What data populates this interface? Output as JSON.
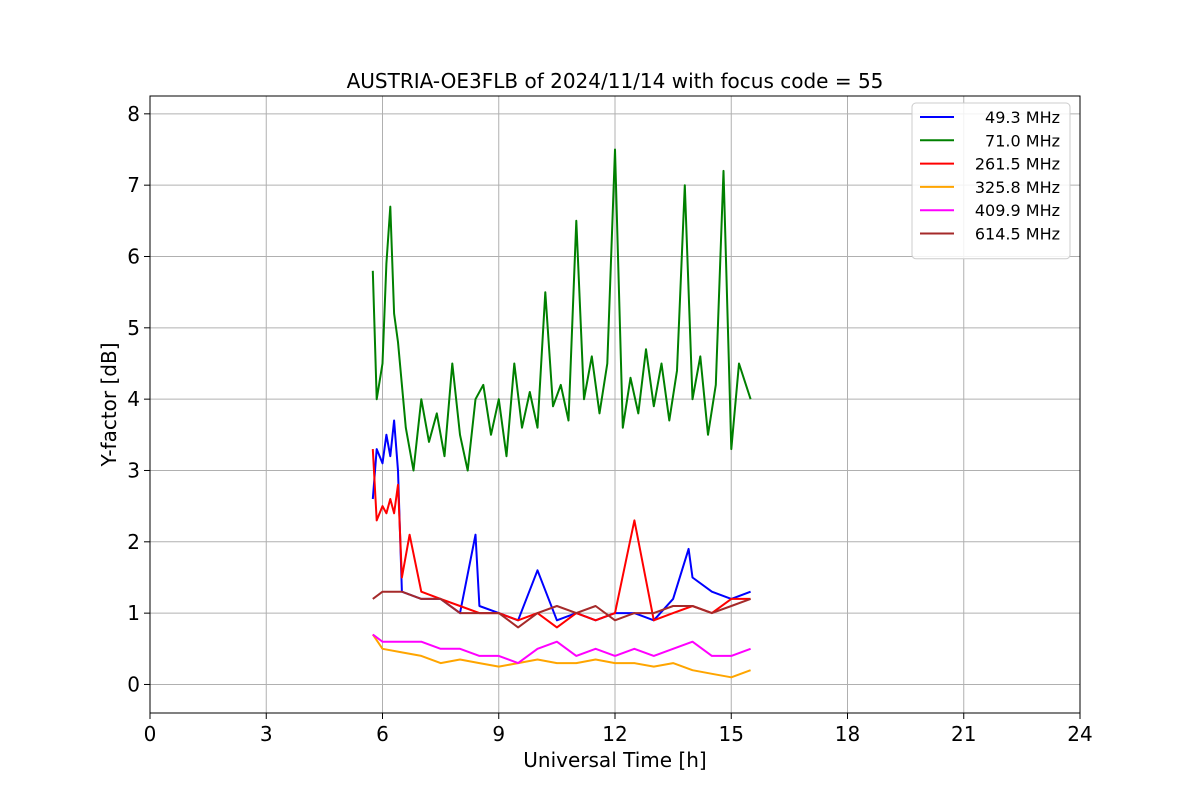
{
  "chart_data": {
    "type": "line",
    "title": "AUSTRIA-OE3FLB of 2024/11/14 with focus code = 55",
    "xlabel": "Universal Time [h]",
    "ylabel": "Y-factor [dB]",
    "xlim": [
      0,
      24
    ],
    "ylim": [
      -0.4,
      8.25
    ],
    "xticks": [
      0,
      3,
      6,
      9,
      12,
      15,
      18,
      21,
      24
    ],
    "yticks": [
      0,
      1,
      2,
      3,
      4,
      5,
      6,
      7,
      8
    ],
    "grid": true,
    "legend_position": "upper-right",
    "series": [
      {
        "name": "49.3 MHz",
        "color": "#0000ff",
        "x": [
          5.75,
          5.85,
          6.0,
          6.1,
          6.2,
          6.3,
          6.4,
          6.5,
          7.0,
          7.5,
          8.0,
          8.4,
          8.5,
          9.0,
          9.5,
          10.0,
          10.5,
          11.0,
          11.5,
          12.0,
          12.5,
          13.0,
          13.5,
          13.9,
          14.0,
          14.5,
          15.0,
          15.5
        ],
        "y": [
          2.6,
          3.3,
          3.1,
          3.5,
          3.2,
          3.7,
          3.0,
          1.3,
          1.2,
          1.2,
          1.0,
          2.1,
          1.1,
          1.0,
          0.9,
          1.6,
          0.9,
          1.0,
          0.9,
          1.0,
          1.0,
          0.9,
          1.2,
          1.9,
          1.5,
          1.3,
          1.2,
          1.3
        ]
      },
      {
        "name": "71.0 MHz",
        "color": "#008000",
        "x": [
          5.75,
          5.85,
          6.0,
          6.1,
          6.2,
          6.3,
          6.4,
          6.6,
          6.8,
          7.0,
          7.2,
          7.4,
          7.6,
          7.8,
          8.0,
          8.2,
          8.4,
          8.6,
          8.8,
          9.0,
          9.2,
          9.4,
          9.6,
          9.8,
          10.0,
          10.2,
          10.4,
          10.6,
          10.8,
          11.0,
          11.2,
          11.4,
          11.6,
          11.8,
          12.0,
          12.2,
          12.4,
          12.6,
          12.8,
          13.0,
          13.2,
          13.4,
          13.6,
          13.8,
          14.0,
          14.2,
          14.4,
          14.6,
          14.8,
          15.0,
          15.2,
          15.5
        ],
        "y": [
          5.8,
          4.0,
          4.5,
          5.9,
          6.7,
          5.2,
          4.8,
          3.6,
          3.0,
          4.0,
          3.4,
          3.8,
          3.2,
          4.5,
          3.5,
          3.0,
          4.0,
          4.2,
          3.5,
          4.0,
          3.2,
          4.5,
          3.6,
          4.1,
          3.6,
          5.5,
          3.9,
          4.2,
          3.7,
          6.5,
          4.0,
          4.6,
          3.8,
          4.5,
          7.5,
          3.6,
          4.3,
          3.8,
          4.7,
          3.9,
          4.5,
          3.7,
          4.4,
          7.0,
          4.0,
          4.6,
          3.5,
          4.2,
          7.2,
          3.3,
          4.5,
          4.0
        ]
      },
      {
        "name": "261.5 MHz",
        "color": "#ff0000",
        "x": [
          5.75,
          5.85,
          6.0,
          6.1,
          6.2,
          6.3,
          6.4,
          6.5,
          6.7,
          7.0,
          7.5,
          8.0,
          8.5,
          9.0,
          9.5,
          10.0,
          10.5,
          11.0,
          11.5,
          12.0,
          12.5,
          13.0,
          13.5,
          14.0,
          14.5,
          15.0,
          15.5
        ],
        "y": [
          3.3,
          2.3,
          2.5,
          2.4,
          2.6,
          2.4,
          2.8,
          1.5,
          2.1,
          1.3,
          1.2,
          1.1,
          1.0,
          1.0,
          0.9,
          1.0,
          0.8,
          1.0,
          0.9,
          1.0,
          2.3,
          0.9,
          1.0,
          1.1,
          1.0,
          1.2,
          1.2
        ]
      },
      {
        "name": "325.8 MHz",
        "color": "#ffa500",
        "x": [
          5.75,
          6.0,
          6.5,
          7.0,
          7.5,
          8.0,
          8.5,
          9.0,
          9.5,
          10.0,
          10.5,
          11.0,
          11.5,
          12.0,
          12.5,
          13.0,
          13.5,
          14.0,
          14.5,
          15.0,
          15.5
        ],
        "y": [
          0.7,
          0.5,
          0.45,
          0.4,
          0.3,
          0.35,
          0.3,
          0.25,
          0.3,
          0.35,
          0.3,
          0.3,
          0.35,
          0.3,
          0.3,
          0.25,
          0.3,
          0.2,
          0.15,
          0.1,
          0.2
        ]
      },
      {
        "name": "409.9 MHz",
        "color": "#ff00ff",
        "x": [
          5.75,
          6.0,
          6.5,
          7.0,
          7.5,
          8.0,
          8.5,
          9.0,
          9.5,
          10.0,
          10.5,
          11.0,
          11.5,
          12.0,
          12.5,
          13.0,
          13.5,
          14.0,
          14.5,
          15.0,
          15.5
        ],
        "y": [
          0.7,
          0.6,
          0.6,
          0.6,
          0.5,
          0.5,
          0.4,
          0.4,
          0.3,
          0.5,
          0.6,
          0.4,
          0.5,
          0.4,
          0.5,
          0.4,
          0.5,
          0.6,
          0.4,
          0.4,
          0.5
        ]
      },
      {
        "name": "614.5 MHz",
        "color": "#a52a2a",
        "x": [
          5.75,
          6.0,
          6.5,
          7.0,
          7.5,
          8.0,
          8.5,
          9.0,
          9.5,
          10.0,
          10.5,
          11.0,
          11.5,
          12.0,
          12.5,
          13.0,
          13.5,
          14.0,
          14.5,
          15.0,
          15.5
        ],
        "y": [
          1.2,
          1.3,
          1.3,
          1.2,
          1.2,
          1.0,
          1.0,
          1.0,
          0.8,
          1.0,
          1.1,
          1.0,
          1.1,
          0.9,
          1.0,
          1.0,
          1.1,
          1.1,
          1.0,
          1.1,
          1.2
        ]
      }
    ]
  }
}
